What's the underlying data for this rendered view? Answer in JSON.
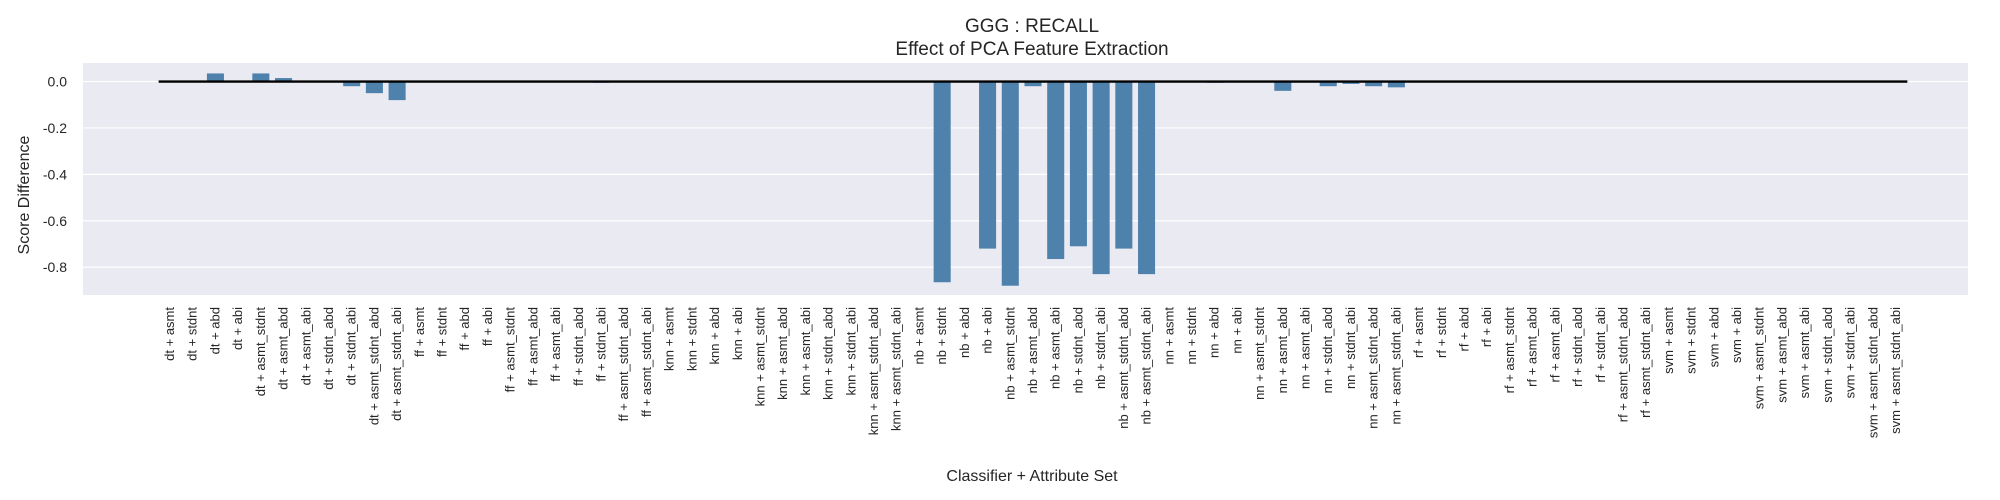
{
  "chart_data": {
    "type": "bar",
    "title": "GGG : RECALL",
    "subtitle": "Effect of PCA Feature Extraction",
    "xlabel": "Classifier + Attribute Set",
    "ylabel": "Score Difference",
    "ylim": [
      -0.92,
      0.08
    ],
    "yticks": [
      0.0,
      -0.2,
      -0.4,
      -0.6,
      -0.8
    ],
    "grid": true,
    "bar_color": "#4e81ab",
    "background_color": "#eaeaf2",
    "zero_line_color": "#000000",
    "categories": [
      "dt + asmt",
      "dt + stdnt",
      "dt + abd",
      "dt + abi",
      "dt + asmt_stdnt",
      "dt + asmt_abd",
      "dt + asmt_abi",
      "dt + stdnt_abd",
      "dt + stdnt_abi",
      "dt + asmt_stdnt_abd",
      "dt + asmt_stdnt_abi",
      "ff + asmt",
      "ff + stdnt",
      "ff + abd",
      "ff + abi",
      "ff + asmt_stdnt",
      "ff + asmt_abd",
      "ff + asmt_abi",
      "ff + stdnt_abd",
      "ff + stdnt_abi",
      "ff + asmt_stdnt_abd",
      "ff + asmt_stdnt_abi",
      "knn + asmt",
      "knn + stdnt",
      "knn + abd",
      "knn + abi",
      "knn + asmt_stdnt",
      "knn + asmt_abd",
      "knn + asmt_abi",
      "knn + stdnt_abd",
      "knn + stdnt_abi",
      "knn + asmt_stdnt_abd",
      "knn + asmt_stdnt_abi",
      "nb + asmt",
      "nb + stdnt",
      "nb + abd",
      "nb + abi",
      "nb + asmt_stdnt",
      "nb + asmt_abd",
      "nb + asmt_abi",
      "nb + stdnt_abd",
      "nb + stdnt_abi",
      "nb + asmt_stdnt_abd",
      "nb + asmt_stdnt_abi",
      "nn + asmt",
      "nn + stdnt",
      "nn + abd",
      "nn + abi",
      "nn + asmt_stdnt",
      "nn + asmt_abd",
      "nn + asmt_abi",
      "nn + stdnt_abd",
      "nn + stdnt_abi",
      "nn + asmt_stdnt_abd",
      "nn + asmt_stdnt_abi",
      "rf + asmt",
      "rf + stdnt",
      "rf + abd",
      "rf + abi",
      "rf + asmt_stdnt",
      "rf + asmt_abd",
      "rf + asmt_abi",
      "rf + stdnt_abd",
      "rf + stdnt_abi",
      "rf + asmt_stdnt_abd",
      "rf + asmt_stdnt_abi",
      "svm + asmt",
      "svm + stdnt",
      "svm + abd",
      "svm + abi",
      "svm + asmt_stdnt",
      "svm + asmt_abd",
      "svm + asmt_abi",
      "svm + stdnt_abd",
      "svm + stdnt_abi",
      "svm + asmt_stdnt_abd",
      "svm + asmt_stdnt_abi"
    ],
    "values": [
      0.0,
      0.0,
      0.035,
      0.0,
      0.035,
      0.015,
      0.0,
      0.0,
      -0.02,
      -0.05,
      -0.08,
      0.0,
      0.0,
      0.0,
      0.0,
      0.0,
      0.0,
      0.0,
      0.0,
      -0.005,
      0.0,
      0.0,
      0.0,
      0.0,
      0.0,
      0.0,
      0.0,
      0.0,
      0.0,
      0.0,
      0.0,
      0.0,
      0.0,
      0.0,
      -0.865,
      0.0,
      -0.72,
      -0.88,
      -0.02,
      -0.765,
      -0.71,
      -0.83,
      -0.72,
      -0.83,
      0.0,
      0.0,
      -0.005,
      0.0,
      0.0,
      -0.04,
      0.0,
      -0.02,
      -0.01,
      -0.02,
      -0.025,
      0.0,
      0.0,
      0.0,
      0.0,
      0.0,
      0.0,
      0.0,
      0.0,
      0.0,
      0.0,
      0.0,
      0.0,
      0.0,
      0.0,
      0.0,
      0.0,
      0.0,
      0.0,
      0.0,
      0.0,
      0.0,
      0.0
    ]
  }
}
